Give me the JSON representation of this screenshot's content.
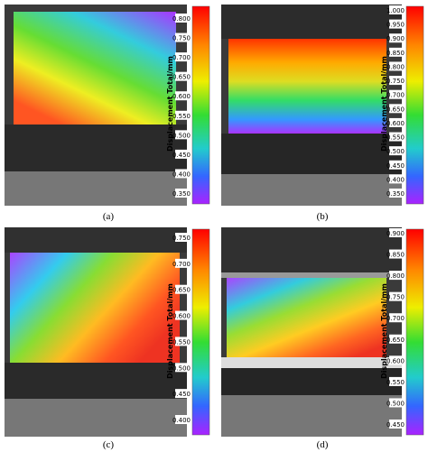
{
  "panels": [
    {
      "label": "(a)",
      "colorbar_title": "Displacement Total/mm",
      "colorbar_ticks": [
        "0.800",
        "0.750",
        "0.700",
        "0.650",
        "0.600",
        "0.550",
        "0.500",
        "0.450",
        "0.400",
        "0.350"
      ]
    },
    {
      "label": "(b)",
      "colorbar_title": "Displacement Total/mm",
      "colorbar_ticks": [
        "1.000",
        "0.950",
        "0.900",
        "0.850",
        "0.800",
        "0.750",
        "0.700",
        "0.650",
        "0.600",
        "0.550",
        "0.500",
        "0.450",
        "0.400",
        "0.350"
      ]
    },
    {
      "label": "(c)",
      "colorbar_title": "Displacement Total/mm",
      "colorbar_ticks": [
        "0.750",
        "0.700",
        "0.650",
        "0.600",
        "0.550",
        "0.500",
        "0.450",
        "0.400"
      ]
    },
    {
      "label": "(d)",
      "colorbar_title": "Displacement Total/mm",
      "colorbar_ticks": [
        "0.900",
        "0.850",
        "0.800",
        "0.750",
        "0.700",
        "0.650",
        "0.600",
        "0.550",
        "0.500",
        "0.450"
      ]
    }
  ]
}
